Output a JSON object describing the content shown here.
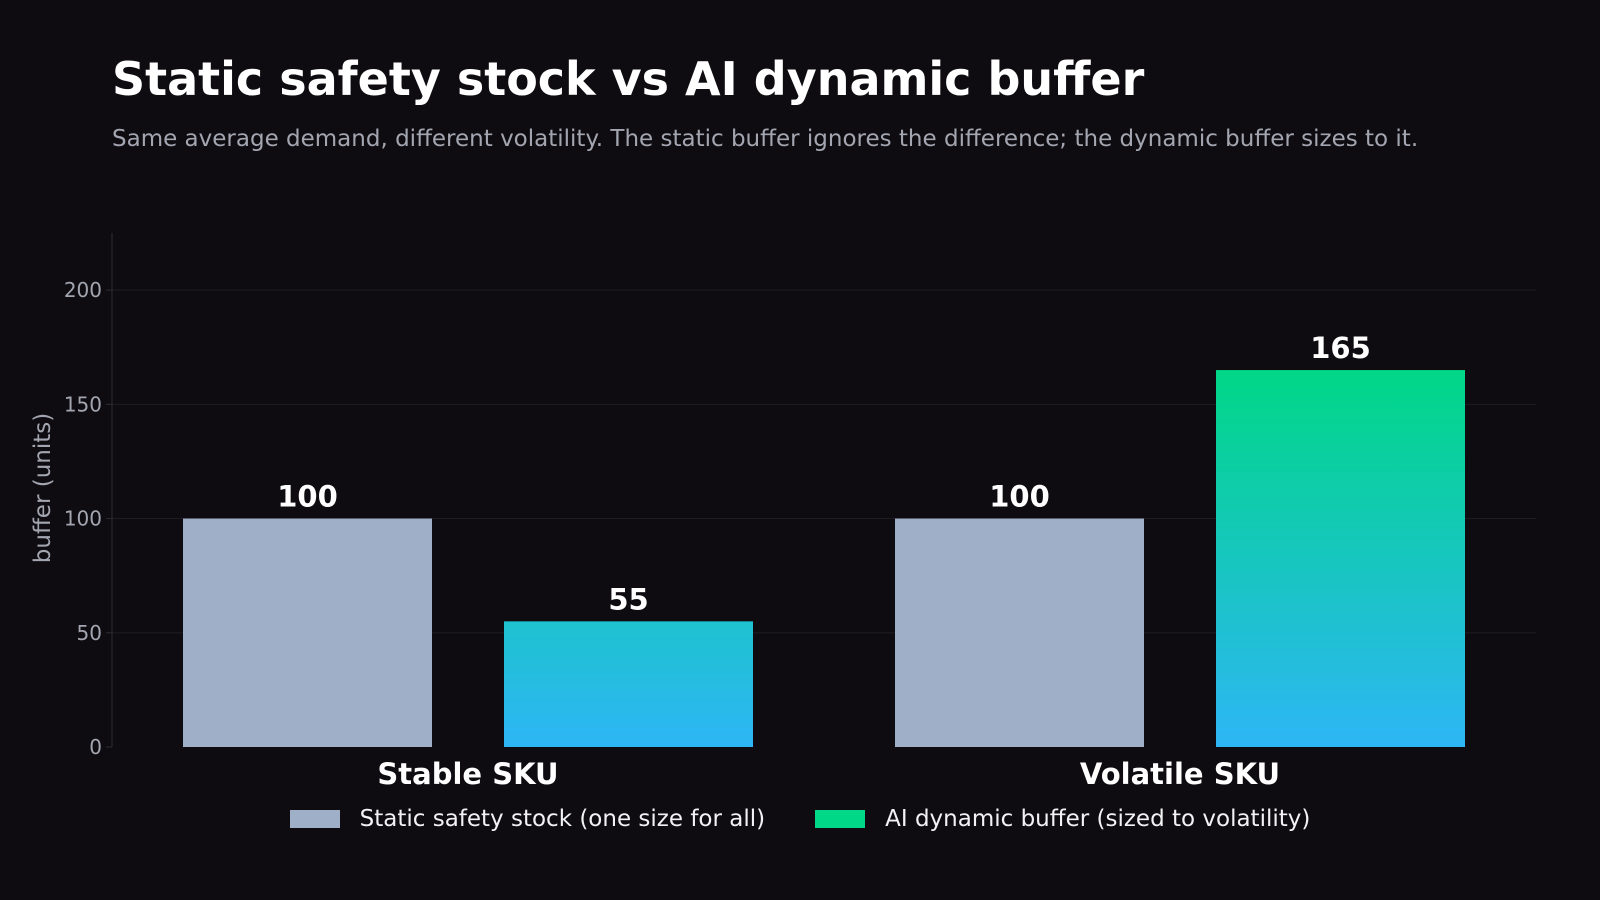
{
  "chart_data": {
    "type": "bar",
    "title": "Static safety stock vs AI dynamic buffer",
    "subtitle": "Same average demand, different volatility. The static buffer ignores the difference; the dynamic buffer sizes to it.",
    "xlabel": "",
    "ylabel": "buffer (units)",
    "categories": [
      "Stable SKU",
      "Volatile SKU"
    ],
    "series": [
      {
        "name": "Static safety stock (one size for all)",
        "values": [
          100,
          100
        ],
        "color": "#a0afc8"
      },
      {
        "name": "AI dynamic buffer (sized to volatility)",
        "values": [
          55,
          165
        ],
        "color": "#00d787",
        "gradient": [
          "#2eb6f5",
          "#00d787"
        ]
      }
    ],
    "ylim": [
      0,
      225
    ],
    "yticks": [
      0,
      50,
      100,
      150,
      200
    ],
    "grid": true,
    "data_labels": true,
    "legend_position": "bottom-center",
    "colors": {
      "background": "#0e0c10",
      "grid": "#1f1d22",
      "axis": "#2e2c33",
      "tick_text": "#a3a6b1",
      "label_text": "#ffffff"
    }
  }
}
